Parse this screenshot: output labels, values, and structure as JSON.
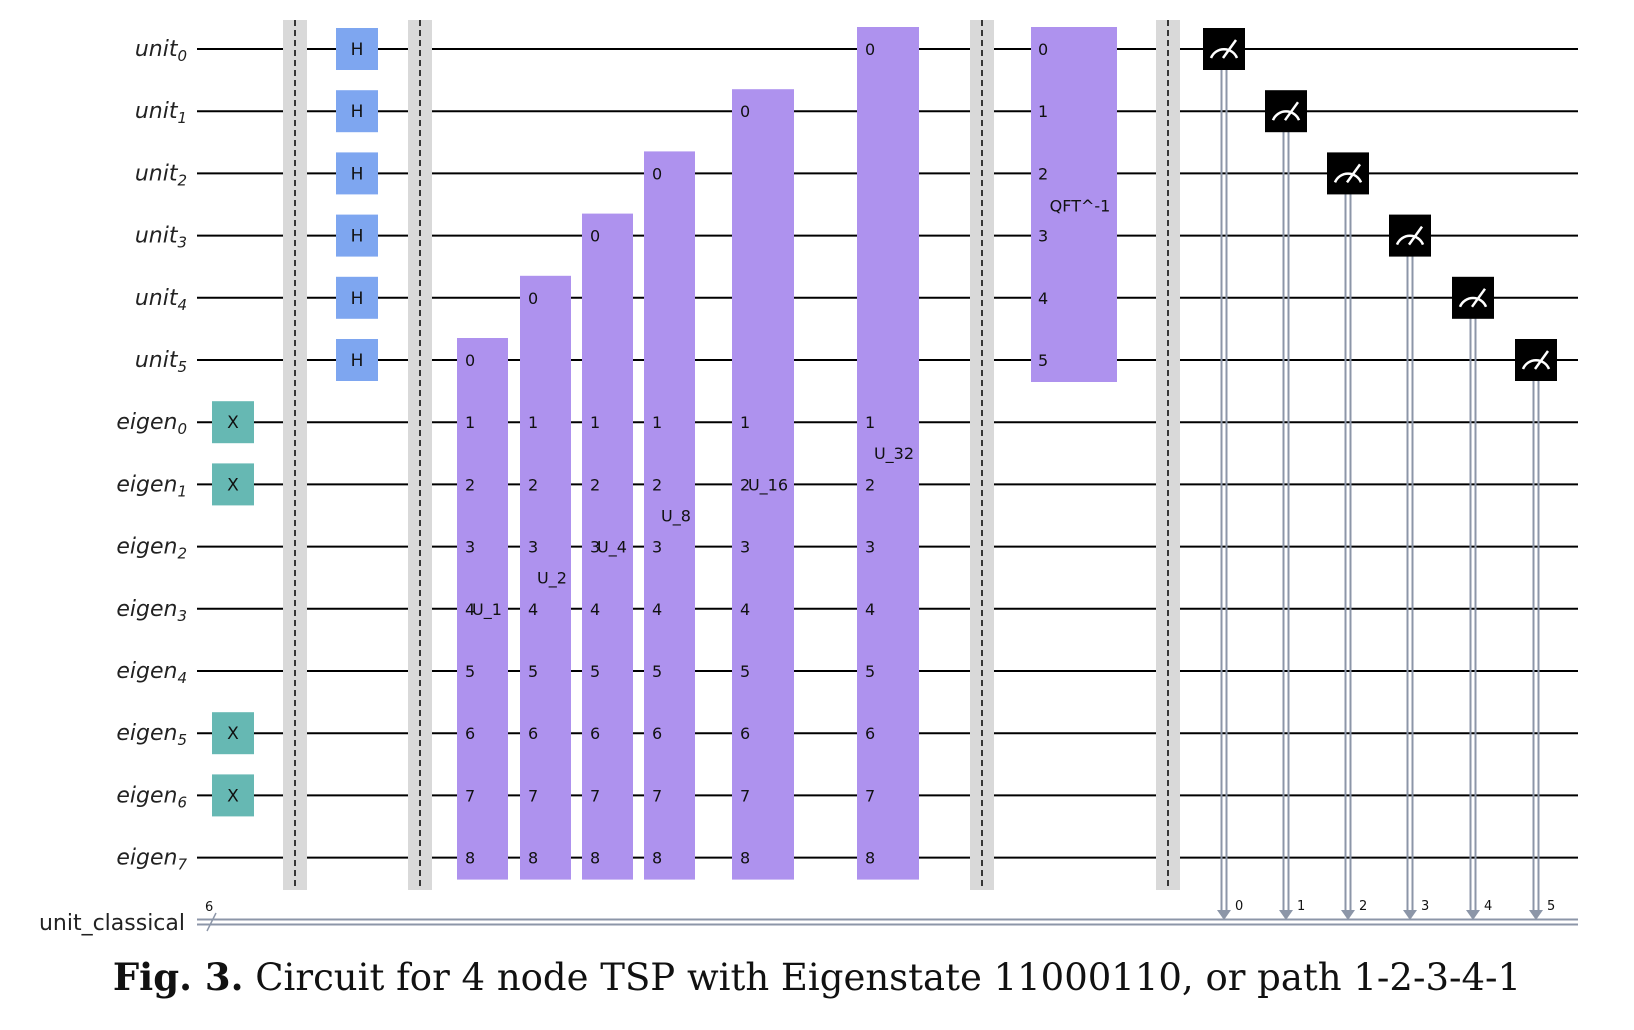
{
  "qubits": [
    {
      "base": "unit",
      "index": "0"
    },
    {
      "base": "unit",
      "index": "1"
    },
    {
      "base": "unit",
      "index": "2"
    },
    {
      "base": "unit",
      "index": "3"
    },
    {
      "base": "unit",
      "index": "4"
    },
    {
      "base": "unit",
      "index": "5"
    },
    {
      "base": "eigen",
      "index": "0"
    },
    {
      "base": "eigen",
      "index": "1"
    },
    {
      "base": "eigen",
      "index": "2"
    },
    {
      "base": "eigen",
      "index": "3"
    },
    {
      "base": "eigen",
      "index": "4"
    },
    {
      "base": "eigen",
      "index": "5"
    },
    {
      "base": "eigen",
      "index": "6"
    },
    {
      "base": "eigen",
      "index": "7"
    }
  ],
  "classical_register": {
    "label": "unit_classical",
    "width": "6"
  },
  "x_gates": {
    "label": "X",
    "targets": [
      6,
      7,
      11,
      12
    ]
  },
  "h_gates": {
    "label": "H",
    "targets": [
      0,
      1,
      2,
      3,
      4,
      5
    ]
  },
  "controlled_unitaries": [
    {
      "label": "U_1",
      "control": 5
    },
    {
      "label": "U_2",
      "control": 4
    },
    {
      "label": "U_4",
      "control": 3
    },
    {
      "label": "U_8",
      "control": 2
    },
    {
      "label": "U_16",
      "control": 1
    },
    {
      "label": "U_32",
      "control": 0
    }
  ],
  "qft_inverse": {
    "label": "QFT^-1",
    "pins": [
      "0",
      "1",
      "2",
      "3",
      "4",
      "5"
    ]
  },
  "measurements": [
    {
      "qubit": 0,
      "bit": "0"
    },
    {
      "qubit": 1,
      "bit": "1"
    },
    {
      "qubit": 2,
      "bit": "2"
    },
    {
      "qubit": 3,
      "bit": "3"
    },
    {
      "qubit": 4,
      "bit": "4"
    },
    {
      "qubit": 5,
      "bit": "5"
    }
  ],
  "colors": {
    "x_gate": "#66b8b3",
    "h_gate": "#7ea6f0",
    "unitary": "#ae92ee",
    "barrier": "#d9d9d9",
    "measure": "#000000",
    "classical_wire": "#8c96a8"
  },
  "caption": {
    "prefix": "Fig. 3.",
    "text": "Circuit for 4 node TSP with Eigenstate 11000110, or path 1-2-3-4-1"
  }
}
